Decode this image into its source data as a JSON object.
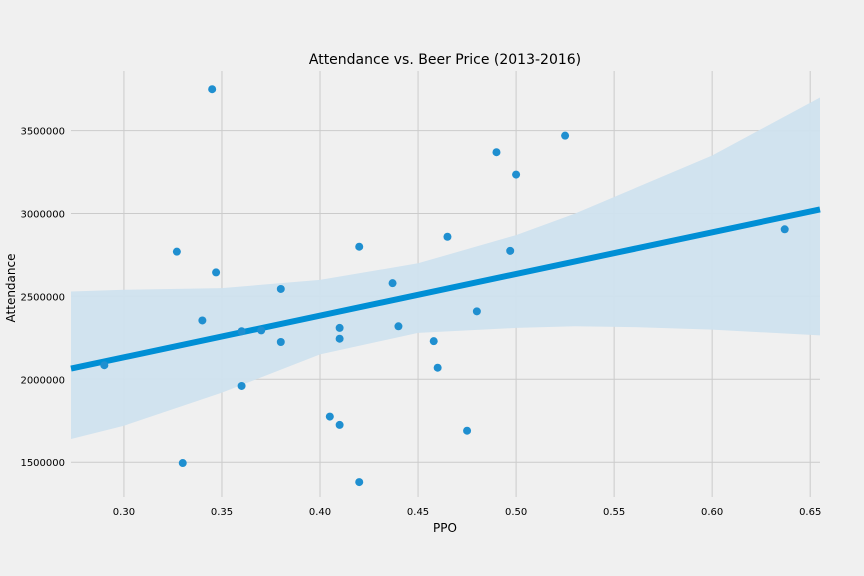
{
  "chart_data": {
    "type": "scatter",
    "title": "Attendance vs. Beer Price (2013-2016)",
    "xlabel": "PPO",
    "ylabel": "Attendance",
    "xlim": [
      0.273,
      0.655
    ],
    "ylim": [
      1290000,
      3860000
    ],
    "x_ticks": [
      0.3,
      0.35,
      0.4,
      0.45,
      0.5,
      0.55,
      0.6,
      0.65
    ],
    "x_tick_labels": [
      "0.30",
      "0.35",
      "0.40",
      "0.45",
      "0.50",
      "0.55",
      "0.60",
      "0.65"
    ],
    "y_ticks": [
      1500000,
      2000000,
      2500000,
      3000000,
      3500000
    ],
    "y_tick_labels": [
      "1500000",
      "2000000",
      "2500000",
      "3000000",
      "3500000"
    ],
    "grid": true,
    "colors": {
      "points": "#1f8fd0",
      "regression": "#008fd5",
      "band": "#cfe2ee",
      "background": "#f0f0f0",
      "grid": "#cbcbcb"
    },
    "points": [
      {
        "x": 0.29,
        "y": 2085000
      },
      {
        "x": 0.327,
        "y": 2770000
      },
      {
        "x": 0.33,
        "y": 1495000
      },
      {
        "x": 0.34,
        "y": 2355000
      },
      {
        "x": 0.345,
        "y": 3750000
      },
      {
        "x": 0.347,
        "y": 2645000
      },
      {
        "x": 0.36,
        "y": 2290000
      },
      {
        "x": 0.36,
        "y": 1960000
      },
      {
        "x": 0.37,
        "y": 2295000
      },
      {
        "x": 0.38,
        "y": 2545000
      },
      {
        "x": 0.38,
        "y": 2225000
      },
      {
        "x": 0.405,
        "y": 1775000
      },
      {
        "x": 0.41,
        "y": 2310000
      },
      {
        "x": 0.41,
        "y": 2245000
      },
      {
        "x": 0.41,
        "y": 1725000
      },
      {
        "x": 0.42,
        "y": 2800000
      },
      {
        "x": 0.42,
        "y": 1380000
      },
      {
        "x": 0.437,
        "y": 2580000
      },
      {
        "x": 0.44,
        "y": 2320000
      },
      {
        "x": 0.458,
        "y": 2230000
      },
      {
        "x": 0.46,
        "y": 2070000
      },
      {
        "x": 0.465,
        "y": 2860000
      },
      {
        "x": 0.475,
        "y": 1690000
      },
      {
        "x": 0.48,
        "y": 2410000
      },
      {
        "x": 0.49,
        "y": 3370000
      },
      {
        "x": 0.497,
        "y": 2775000
      },
      {
        "x": 0.5,
        "y": 3235000
      },
      {
        "x": 0.525,
        "y": 3470000
      },
      {
        "x": 0.637,
        "y": 2905000
      }
    ],
    "regression": {
      "x": [
        0.273,
        0.655
      ],
      "y": [
        2065000,
        3025000
      ]
    },
    "confidence_band": {
      "x": [
        0.273,
        0.3,
        0.35,
        0.4,
        0.45,
        0.5,
        0.53,
        0.56,
        0.6,
        0.655
      ],
      "upper": [
        2530000,
        2540000,
        2550000,
        2600000,
        2700000,
        2870000,
        3000000,
        3150000,
        3350000,
        3700000
      ],
      "lower": [
        1640000,
        1720000,
        1920000,
        2150000,
        2280000,
        2310000,
        2320000,
        2315000,
        2300000,
        2265000
      ]
    }
  }
}
